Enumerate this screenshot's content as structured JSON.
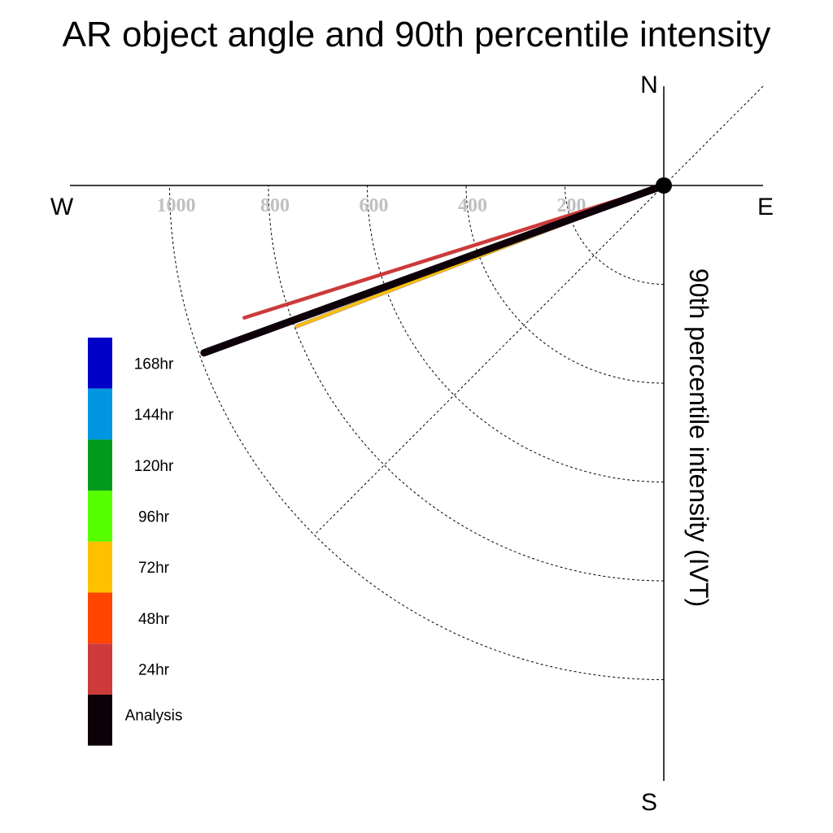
{
  "chart_data": {
    "type": "polar-vector",
    "title": "AR object angle and 90th percentile intensity",
    "ylabel": "90th percentile intensity (IVT)",
    "compass": {
      "north": "N",
      "south": "S",
      "east": "E",
      "west": "W"
    },
    "radial_ticks": [
      "200",
      "400",
      "600",
      "800",
      "1000"
    ],
    "radial_tick_values": [
      200,
      400,
      600,
      800,
      1000
    ],
    "radial_max": 1200,
    "quadrant": "southwest",
    "diagonal_grid_angle_deg": 45,
    "series": [
      {
        "name": "24hr",
        "angle_deg": 252.5,
        "intensity": 890,
        "color": "#cc3a3a"
      },
      {
        "name": "72hr",
        "angle_deg": 249.0,
        "intensity": 795,
        "color": "#ffc000"
      },
      {
        "name": "Analysis",
        "angle_deg": 250.0,
        "intensity": 990,
        "color": "#0d0008"
      }
    ],
    "legend": [
      {
        "label": "168hr",
        "color": "#0000c8"
      },
      {
        "label": "144hr",
        "color": "#0096e1"
      },
      {
        "label": "120hr",
        "color": "#009a1c"
      },
      {
        "label": "96hr",
        "color": "#55ff00"
      },
      {
        "label": "72hr",
        "color": "#ffc000"
      },
      {
        "label": "48hr",
        "color": "#ff4500"
      },
      {
        "label": "24hr",
        "color": "#cc3a3a"
      },
      {
        "label": "Analysis",
        "color": "#0d0008"
      }
    ],
    "legend_position": "left"
  }
}
